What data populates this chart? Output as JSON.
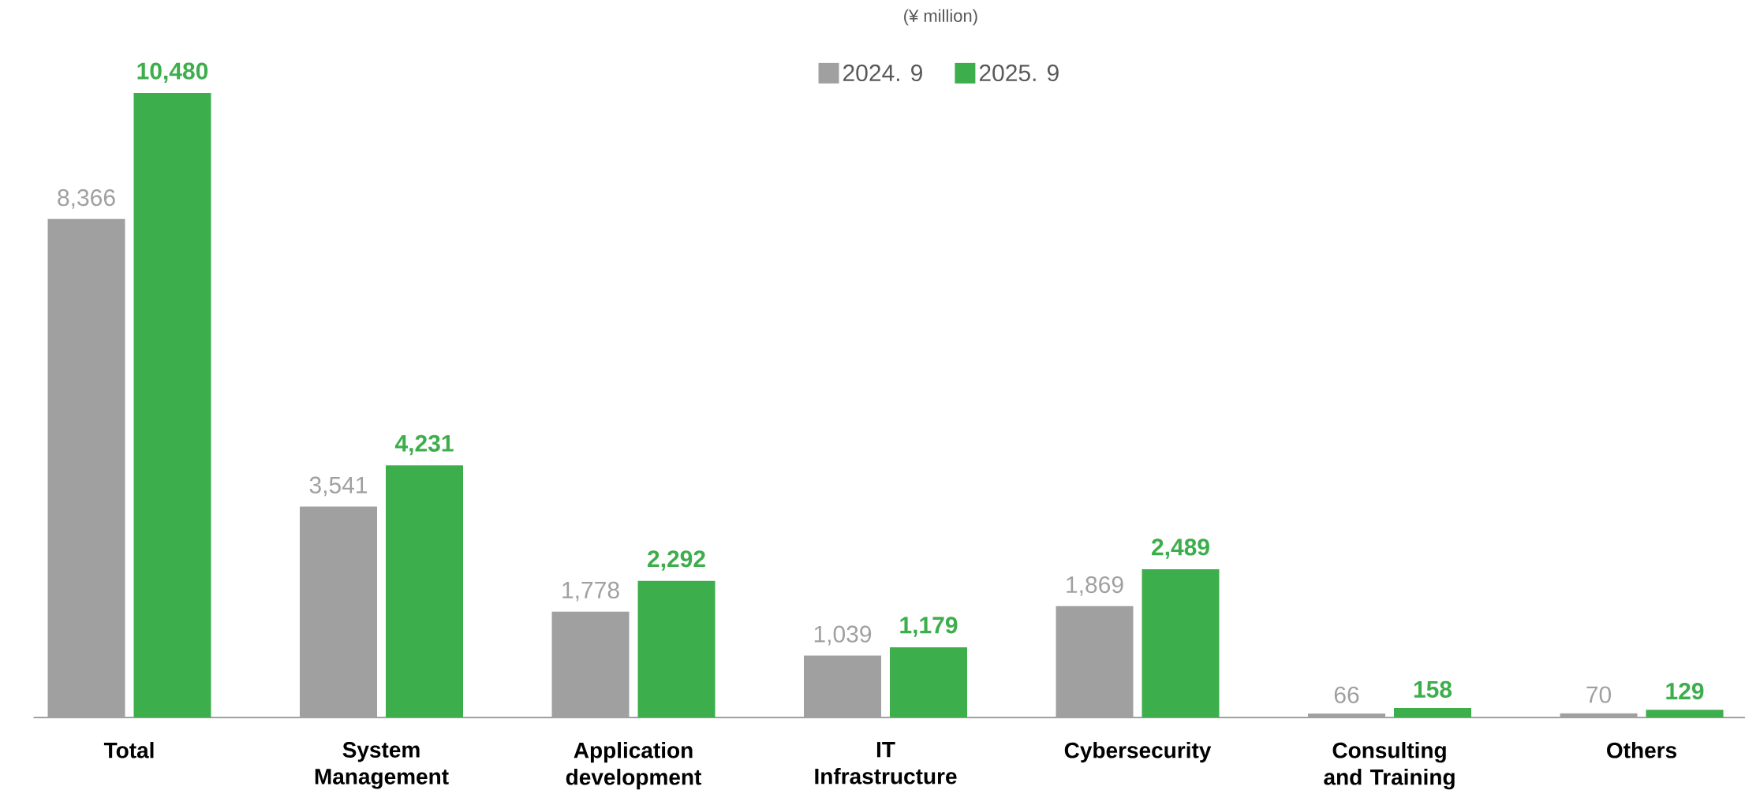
{
  "chart_data": {
    "type": "bar",
    "annotations": [
      "(¥ million)"
    ],
    "categories": [
      "Total",
      "System Management",
      "Application development",
      "IT Infrastructure",
      "Cybersecurity",
      "Consulting and Training",
      "Others"
    ],
    "series": [
      {
        "name": "2024. 9",
        "color": "#a0a0a0",
        "values": [
          8366,
          3541,
          1778,
          1039,
          1869,
          66,
          70
        ],
        "value_labels": [
          "8,366",
          "3,541",
          "1,778",
          "1,039",
          "1,869",
          "66",
          "70"
        ]
      },
      {
        "name": "2025. 9",
        "color": "#3dae4c",
        "values": [
          10480,
          4231,
          2292,
          1179,
          2489,
          158,
          129
        ],
        "value_labels": [
          "10,480",
          "4,231",
          "2,292",
          "1,179",
          "2,489",
          "158",
          "129"
        ]
      }
    ],
    "legend": "top"
  }
}
